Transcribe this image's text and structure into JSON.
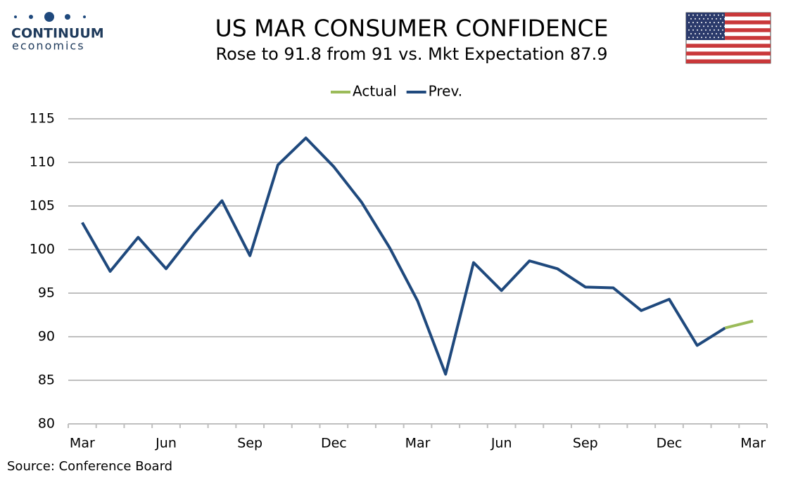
{
  "logo": {
    "name": "CONTINUUM",
    "tagline": "economics"
  },
  "source": "Source: Conference Board",
  "chart_data": {
    "type": "line",
    "title": "US MAR CONSUMER CONFIDENCE",
    "subtitle": "Rose to 91.8 from 91 vs. Mkt Expectation 87.9",
    "categories": [
      "Mar",
      null,
      null,
      "Jun",
      null,
      null,
      "Sep",
      null,
      null,
      "Dec",
      null,
      null,
      "Mar",
      null,
      null,
      "Jun",
      null,
      null,
      "Sep",
      null,
      null,
      "Dec",
      null,
      null,
      "Mar"
    ],
    "series": [
      {
        "name": "Actual",
        "color": "#9bbb59",
        "values": [
          null,
          null,
          null,
          null,
          null,
          null,
          null,
          null,
          null,
          null,
          null,
          null,
          null,
          null,
          null,
          null,
          null,
          null,
          null,
          null,
          null,
          null,
          null,
          91,
          91.8
        ]
      },
      {
        "name": "Prev.",
        "color": "#1f497d",
        "values": [
          103.1,
          97.5,
          101.4,
          97.8,
          101.9,
          105.6,
          99.3,
          109.7,
          112.8,
          109.5,
          105.4,
          100.2,
          94.1,
          85.7,
          98.5,
          95.3,
          98.7,
          97.8,
          95.7,
          95.6,
          93,
          94.3,
          89,
          91,
          null
        ]
      }
    ],
    "ylim": [
      80,
      115
    ],
    "yticks": [
      80,
      85,
      90,
      95,
      100,
      105,
      110,
      115
    ],
    "grid": true,
    "legend": "top"
  }
}
